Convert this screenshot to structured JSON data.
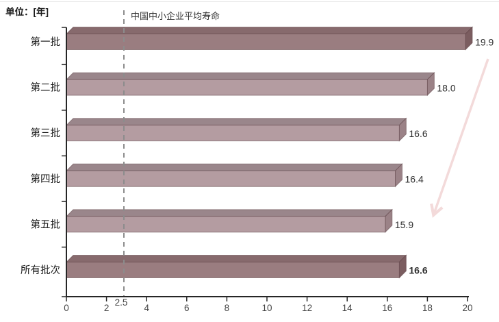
{
  "page": {
    "background": "#ffffff"
  },
  "chart_data": {
    "type": "bar",
    "orientation": "horizontal",
    "unit_label": "单位：[年]",
    "categories": [
      "第一批",
      "第二批",
      "第三批",
      "第四批",
      "第五批",
      "所有批次"
    ],
    "values": [
      19.9,
      18.0,
      16.6,
      16.4,
      15.9,
      16.6
    ],
    "value_labels": [
      "19.9",
      "18.0",
      "16.6",
      "16.4",
      "15.9",
      "16.6"
    ],
    "emphasized_value_index": 5,
    "xlim": [
      0,
      20
    ],
    "x_ticks": [
      "0",
      "2",
      "4",
      "6",
      "8",
      "10",
      "12",
      "14",
      "16",
      "18",
      "20"
    ],
    "x_tick_values": [
      0,
      2,
      4,
      6,
      8,
      10,
      12,
      14,
      16,
      18,
      20
    ],
    "grid": false,
    "legend": false,
    "reference_line": {
      "value": 2.5,
      "tick_label": "2.5",
      "label": "中国中小企业平均寿命",
      "style": "dashed"
    },
    "series_color_roles": [
      "dark",
      "light",
      "light",
      "light",
      "light",
      "dark"
    ],
    "colors": {
      "bar_dark_front": "#9a7d80",
      "bar_dark_top": "#876a6d",
      "bar_dark_side": "#7b5d60",
      "bar_light_front": "#b49ca1",
      "bar_light_top": "#9a868b",
      "bar_light_side": "#9b8287",
      "bar_outline": "rgba(90,62,66,0.5)",
      "axis": "#262626",
      "tick_text": "#444444",
      "category_text": "#1a1a1a",
      "value_text": "#2e2e2e",
      "dashed_line": "#8c8c8c",
      "arrow": "#f3dada"
    },
    "annotation_arrow": {
      "present": true,
      "from_value": 19.9,
      "to_value": 15.9
    }
  }
}
